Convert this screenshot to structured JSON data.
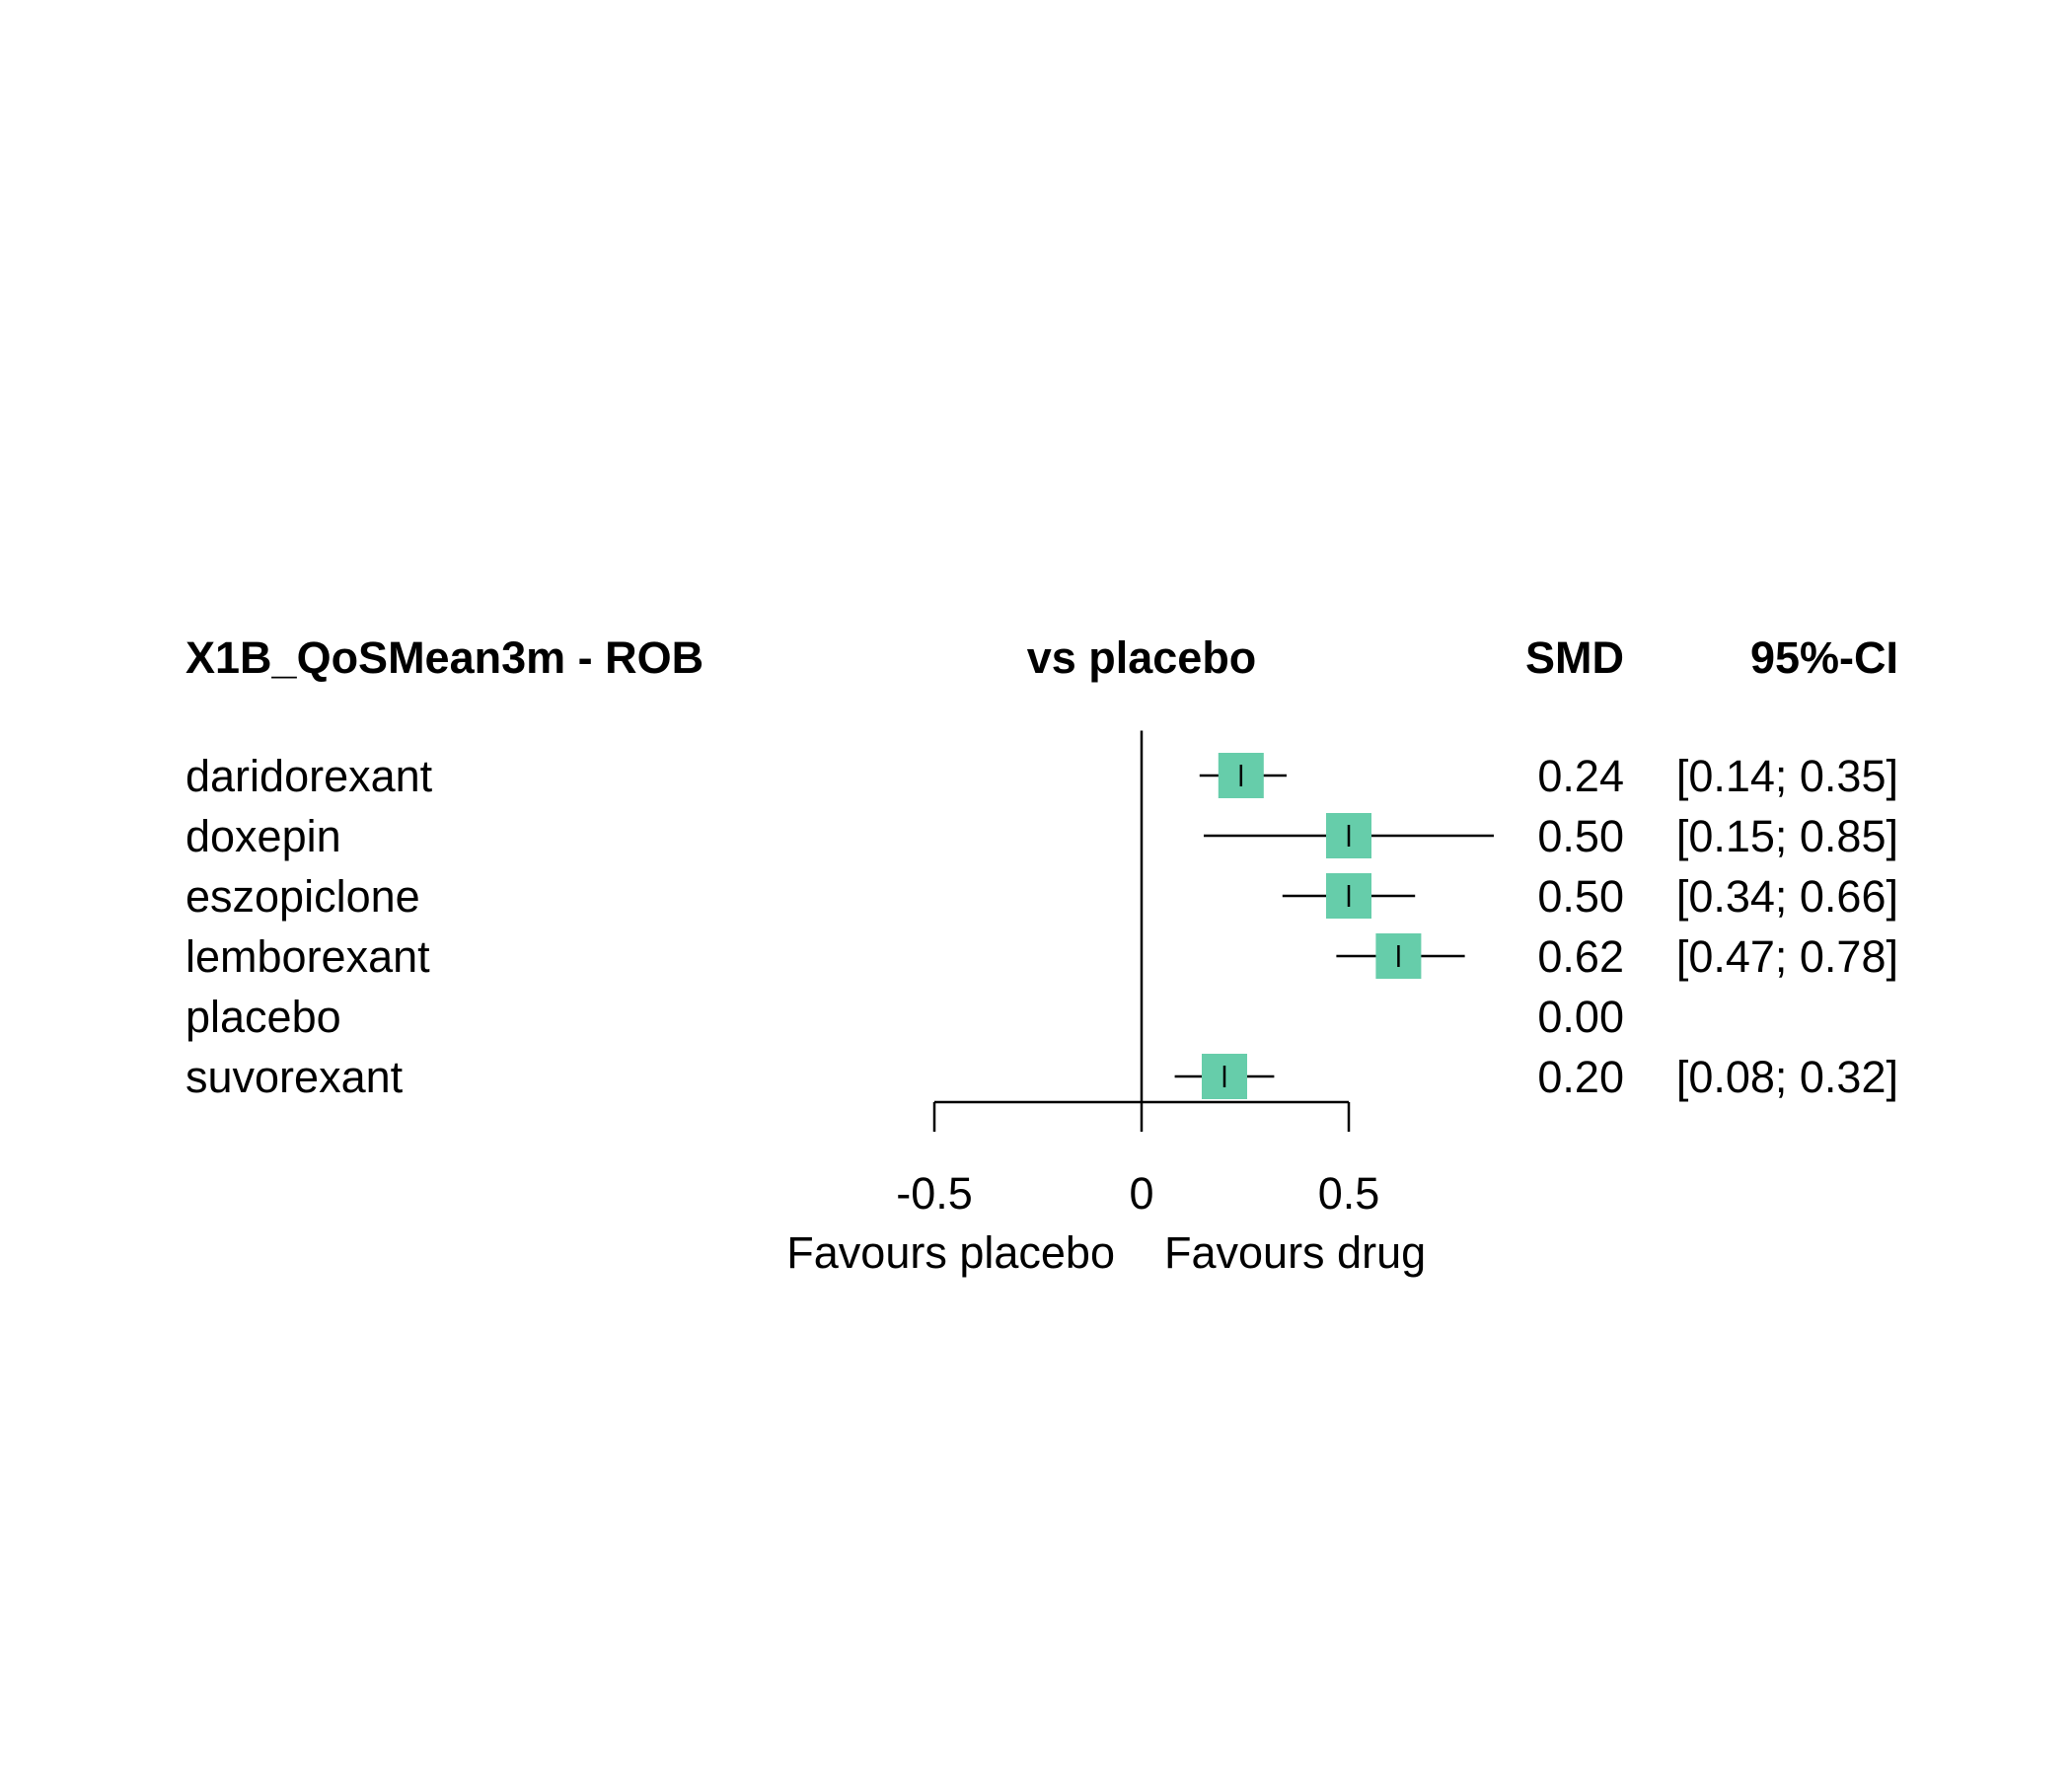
{
  "chart_data": {
    "type": "forest",
    "title": "X1B_QoSMean3m - ROB",
    "columns": {
      "comparison": "vs placebo",
      "effect": "SMD",
      "ci": "95%-CI"
    },
    "rows": [
      {
        "label": "daridorexant",
        "smd": 0.24,
        "lower": 0.14,
        "upper": 0.35,
        "smd_text": "0.24",
        "ci_text": "[0.14; 0.35]"
      },
      {
        "label": "doxepin",
        "smd": 0.5,
        "lower": 0.15,
        "upper": 0.85,
        "smd_text": "0.50",
        "ci_text": "[0.15; 0.85]"
      },
      {
        "label": "eszopiclone",
        "smd": 0.5,
        "lower": 0.34,
        "upper": 0.66,
        "smd_text": "0.50",
        "ci_text": "[0.34; 0.66]"
      },
      {
        "label": "lemborexant",
        "smd": 0.62,
        "lower": 0.47,
        "upper": 0.78,
        "smd_text": "0.62",
        "ci_text": "[0.47; 0.78]"
      },
      {
        "label": "placebo",
        "smd": 0.0,
        "lower": null,
        "upper": null,
        "smd_text": "0.00",
        "ci_text": ""
      },
      {
        "label": "suvorexant",
        "smd": 0.2,
        "lower": 0.08,
        "upper": 0.32,
        "smd_text": "0.20",
        "ci_text": "[0.08; 0.32]"
      }
    ],
    "xaxis": {
      "ticks": [
        -0.5,
        0,
        0.5
      ],
      "tick_labels": [
        "-0.5",
        "0",
        "0.5"
      ],
      "xlim": [
        -0.5,
        0.5
      ],
      "left_label": "Favours placebo",
      "right_label": "Favours drug"
    },
    "reference_line": 0,
    "marker_color": "#66CDAA"
  }
}
